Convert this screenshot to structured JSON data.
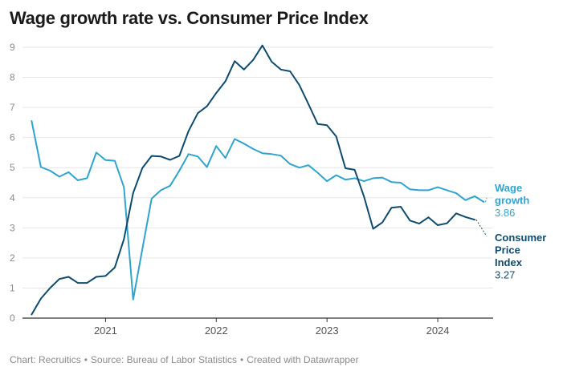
{
  "title": "Wage growth rate vs. Consumer Price Index",
  "footer": {
    "chart": "Chart: Recruitics",
    "source": "Source: Bureau of Labor Statistics",
    "created": "Created with Datawrapper",
    "separator": "•"
  },
  "colors": {
    "wage": "#2fa4cf",
    "cpi": "#0e4b6e",
    "grid": "#e6e6e6",
    "axis": "#333333"
  },
  "chart_data": {
    "type": "line",
    "title": "Wage growth rate vs. Consumer Price Index",
    "xlabel": "",
    "ylabel": "",
    "ylim": [
      0,
      9
    ],
    "yticks": [
      "0",
      "1",
      "2",
      "3",
      "4",
      "5",
      "6",
      "7",
      "8",
      "9"
    ],
    "xticks": [
      {
        "label": "2021",
        "t": 2021.0
      },
      {
        "label": "2022",
        "t": 2022.0
      },
      {
        "label": "2023",
        "t": 2023.0
      },
      {
        "label": "2024",
        "t": 2024.0
      }
    ],
    "x_start": 2020.333,
    "x_step": 0.08333,
    "grid": true,
    "series": [
      {
        "name": "Wage growth",
        "label_lines": [
          "Wage",
          "growth"
        ],
        "last_value": "3.86",
        "values": [
          6.55,
          5.02,
          4.9,
          4.7,
          4.85,
          4.58,
          4.65,
          5.5,
          5.25,
          5.23,
          4.35,
          0.62,
          2.3,
          3.97,
          4.25,
          4.4,
          4.9,
          5.45,
          5.37,
          5.02,
          5.72,
          5.32,
          5.95,
          5.8,
          5.62,
          5.48,
          5.45,
          5.4,
          5.12,
          5.0,
          5.08,
          4.83,
          4.55,
          4.75,
          4.6,
          4.65,
          4.55,
          4.65,
          4.67,
          4.52,
          4.5,
          4.28,
          4.25,
          4.25,
          4.35,
          4.25,
          4.15,
          3.92,
          4.05,
          3.86
        ]
      },
      {
        "name": "Consumer Price Index",
        "label_lines": [
          "Consumer",
          "Price",
          "Index"
        ],
        "last_value": "3.27",
        "values": [
          0.12,
          0.65,
          1.0,
          1.3,
          1.37,
          1.17,
          1.17,
          1.37,
          1.4,
          1.68,
          2.62,
          4.16,
          4.99,
          5.39,
          5.37,
          5.26,
          5.39,
          6.22,
          6.81,
          7.04,
          7.48,
          7.87,
          8.54,
          8.26,
          8.58,
          9.06,
          8.52,
          8.26,
          8.2,
          7.75,
          7.11,
          6.45,
          6.41,
          6.04,
          4.98,
          4.93,
          4.05,
          2.97,
          3.18,
          3.67,
          3.7,
          3.24,
          3.14,
          3.35,
          3.09,
          3.15,
          3.48,
          3.36,
          3.27
        ]
      }
    ]
  }
}
